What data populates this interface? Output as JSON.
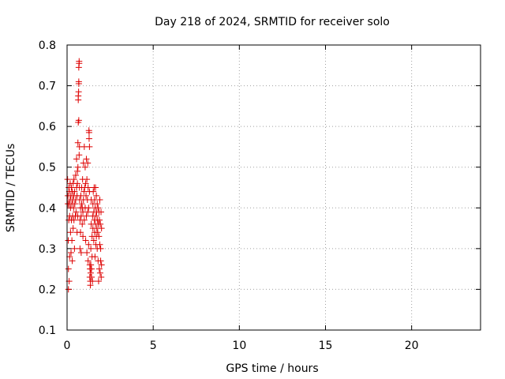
{
  "chart_data": {
    "type": "scatter",
    "title": "Day 218 of 2024, SRMTID for receiver solo",
    "xlabel": "GPS time / hours",
    "ylabel": "SRMTID / TECUs",
    "xlim": [
      0,
      24
    ],
    "ylim": [
      0.1,
      0.8
    ],
    "xticks": [
      0,
      5,
      10,
      15,
      20
    ],
    "xtick_labels": [
      "0",
      "5",
      "10",
      "15",
      "20"
    ],
    "yticks": [
      0.1,
      0.2,
      0.3,
      0.4,
      0.5,
      0.6,
      0.7,
      0.8
    ],
    "ytick_labels": [
      "0.1",
      "0.2",
      "0.3",
      "0.4",
      "0.5",
      "0.6",
      "0.7",
      "0.8"
    ],
    "grid": true,
    "marker": "+",
    "color": "#dd0000",
    "series": [
      {
        "name": "SRMTID",
        "points": [
          [
            0.03,
            0.47
          ],
          [
            0.05,
            0.43
          ],
          [
            0.05,
            0.41
          ],
          [
            0.07,
            0.32
          ],
          [
            0.08,
            0.25
          ],
          [
            0.08,
            0.2
          ],
          [
            0.1,
            0.37
          ],
          [
            0.1,
            0.45
          ],
          [
            0.12,
            0.41
          ],
          [
            0.12,
            0.22
          ],
          [
            0.13,
            0.44
          ],
          [
            0.15,
            0.38
          ],
          [
            0.15,
            0.28
          ],
          [
            0.18,
            0.46
          ],
          [
            0.18,
            0.42
          ],
          [
            0.2,
            0.34
          ],
          [
            0.2,
            0.4
          ],
          [
            0.22,
            0.43
          ],
          [
            0.23,
            0.29
          ],
          [
            0.25,
            0.45
          ],
          [
            0.25,
            0.37
          ],
          [
            0.28,
            0.41
          ],
          [
            0.28,
            0.32
          ],
          [
            0.3,
            0.44
          ],
          [
            0.3,
            0.27
          ],
          [
            0.32,
            0.38
          ],
          [
            0.33,
            0.42
          ],
          [
            0.35,
            0.46
          ],
          [
            0.35,
            0.35
          ],
          [
            0.38,
            0.4
          ],
          [
            0.38,
            0.43
          ],
          [
            0.4,
            0.47
          ],
          [
            0.4,
            0.37
          ],
          [
            0.43,
            0.44
          ],
          [
            0.43,
            0.3
          ],
          [
            0.45,
            0.41
          ],
          [
            0.48,
            0.38
          ],
          [
            0.5,
            0.42
          ],
          [
            0.5,
            0.48
          ],
          [
            0.52,
            0.39
          ],
          [
            0.55,
            0.45
          ],
          [
            0.55,
            0.52
          ],
          [
            0.58,
            0.43
          ],
          [
            0.58,
            0.34
          ],
          [
            0.6,
            0.46
          ],
          [
            0.62,
            0.38
          ],
          [
            0.6,
            0.49
          ],
          [
            0.63,
            0.5
          ],
          [
            0.63,
            0.56
          ],
          [
            0.65,
            0.61
          ],
          [
            0.65,
            0.665
          ],
          [
            0.65,
            0.675
          ],
          [
            0.67,
            0.685
          ],
          [
            0.68,
            0.705
          ],
          [
            0.68,
            0.71
          ],
          [
            0.68,
            0.745
          ],
          [
            0.7,
            0.76
          ],
          [
            0.7,
            0.755
          ],
          [
            0.68,
            0.615
          ],
          [
            0.7,
            0.53
          ],
          [
            0.72,
            0.55
          ],
          [
            0.72,
            0.45
          ],
          [
            0.73,
            0.42
          ],
          [
            0.75,
            0.37
          ],
          [
            0.75,
            0.3
          ],
          [
            0.78,
            0.4
          ],
          [
            0.78,
            0.34
          ],
          [
            0.8,
            0.43
          ],
          [
            0.82,
            0.38
          ],
          [
            0.82,
            0.29
          ],
          [
            0.85,
            0.41
          ],
          [
            0.85,
            0.45
          ],
          [
            0.88,
            0.36
          ],
          [
            0.88,
            0.4
          ],
          [
            0.9,
            0.47
          ],
          [
            0.92,
            0.39
          ],
          [
            0.92,
            0.33
          ],
          [
            0.95,
            0.42
          ],
          [
            0.95,
            0.51
          ],
          [
            0.98,
            0.44
          ],
          [
            1.0,
            0.37
          ],
          [
            1.0,
            0.55
          ],
          [
            1.02,
            0.45
          ],
          [
            1.05,
            0.5
          ],
          [
            1.05,
            0.4
          ],
          [
            1.08,
            0.46
          ],
          [
            1.08,
            0.32
          ],
          [
            1.1,
            0.43
          ],
          [
            1.12,
            0.52
          ],
          [
            1.12,
            0.38
          ],
          [
            1.15,
            0.47
          ],
          [
            1.15,
            0.29
          ],
          [
            1.18,
            0.42
          ],
          [
            1.2,
            0.51
          ],
          [
            1.2,
            0.39
          ],
          [
            1.22,
            0.45
          ],
          [
            1.22,
            0.27
          ],
          [
            1.25,
            0.4
          ],
          [
            1.25,
            0.31
          ],
          [
            1.27,
            0.59
          ],
          [
            1.28,
            0.585
          ],
          [
            1.28,
            0.57
          ],
          [
            1.3,
            0.55
          ],
          [
            1.3,
            0.44
          ],
          [
            1.32,
            0.26
          ],
          [
            1.32,
            0.23
          ],
          [
            1.33,
            0.25
          ],
          [
            1.35,
            0.22
          ],
          [
            1.35,
            0.21
          ],
          [
            1.37,
            0.24
          ],
          [
            1.38,
            0.26
          ],
          [
            1.38,
            0.3
          ],
          [
            1.4,
            0.42
          ],
          [
            1.4,
            0.36
          ],
          [
            1.42,
            0.25
          ],
          [
            1.42,
            0.23
          ],
          [
            1.45,
            0.28
          ],
          [
            1.45,
            0.33
          ],
          [
            1.47,
            0.22
          ],
          [
            1.48,
            0.38
          ],
          [
            1.5,
            0.41
          ],
          [
            1.5,
            0.35
          ],
          [
            1.52,
            0.44
          ],
          [
            1.55,
            0.39
          ],
          [
            1.55,
            0.32
          ],
          [
            1.57,
            0.45
          ],
          [
            1.58,
            0.37
          ],
          [
            1.6,
            0.42
          ],
          [
            1.6,
            0.34
          ],
          [
            1.62,
            0.28
          ],
          [
            1.63,
            0.4
          ],
          [
            1.65,
            0.36
          ],
          [
            1.65,
            0.45
          ],
          [
            1.67,
            0.31
          ],
          [
            1.68,
            0.38
          ],
          [
            1.7,
            0.43
          ],
          [
            1.7,
            0.33
          ],
          [
            1.72,
            0.39
          ],
          [
            1.73,
            0.35
          ],
          [
            1.75,
            0.41
          ],
          [
            1.75,
            0.3
          ],
          [
            1.77,
            0.37
          ],
          [
            1.78,
            0.34
          ],
          [
            1.8,
            0.4
          ],
          [
            1.8,
            0.27
          ],
          [
            1.82,
            0.36
          ],
          [
            1.83,
            0.22
          ],
          [
            1.85,
            0.39
          ],
          [
            1.85,
            0.33
          ],
          [
            1.87,
            0.25
          ],
          [
            1.88,
            0.37
          ],
          [
            1.9,
            0.31
          ],
          [
            1.9,
            0.42
          ],
          [
            1.92,
            0.24
          ],
          [
            1.93,
            0.36
          ],
          [
            1.95,
            0.3
          ],
          [
            1.95,
            0.27
          ],
          [
            1.97,
            0.39
          ],
          [
            1.98,
            0.23
          ],
          [
            2.0,
            0.35
          ],
          [
            2.0,
            0.26
          ]
        ]
      }
    ]
  }
}
